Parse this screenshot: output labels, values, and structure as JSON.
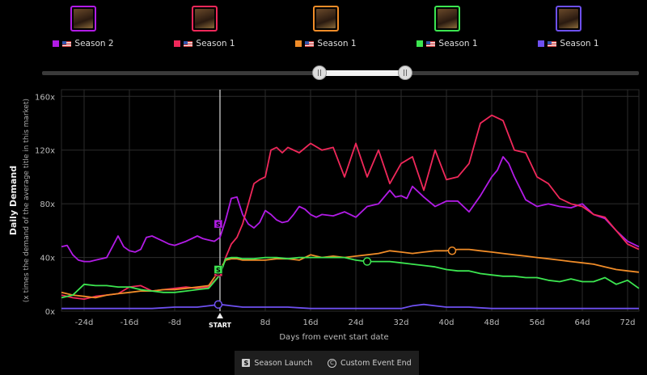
{
  "titles": [
    {
      "label": "Season 2",
      "color": "#b21be6",
      "border": "#b21be6"
    },
    {
      "label": "Season 1",
      "color": "#f0285a",
      "border": "#f0285a"
    },
    {
      "label": "Season 1",
      "color": "#f08c28",
      "border": "#f08c28"
    },
    {
      "label": "Season 1",
      "color": "#3ce650",
      "border": "#3ce650"
    },
    {
      "label": "Season 1",
      "color": "#6e50f0",
      "border": "#6e50f0"
    }
  ],
  "footer": {
    "season_launch": "Season Launch",
    "custom_event_end": "Custom Event End",
    "s_icon": "S",
    "c_icon": "C"
  },
  "chart_data": {
    "type": "line",
    "xlabel": "Days from event start date",
    "ylabel": "Daily Demand",
    "ylabel_sub": "(x times the demand of the average title in this market)",
    "xlim": [
      -28,
      74
    ],
    "ylim": [
      0,
      165
    ],
    "yticks": [
      0,
      40,
      80,
      120,
      160
    ],
    "ytick_labels": [
      "0x",
      "40x",
      "80x",
      "120x",
      "160x"
    ],
    "xticks": [
      -24,
      -16,
      -8,
      8,
      16,
      24,
      32,
      40,
      48,
      56,
      64,
      72
    ],
    "xtick_labels": [
      "-24d",
      "-16d",
      "-8d",
      "8d",
      "16d",
      "24d",
      "32d",
      "40d",
      "48d",
      "56d",
      "64d",
      "72d"
    ],
    "start_label": "START",
    "grid": true,
    "series": [
      {
        "color": "#b21be6",
        "x": [
          -28,
          -27,
          -26,
          -25,
          -24,
          -23,
          -22,
          -20,
          -18,
          -17,
          -16,
          -15,
          -14,
          -13,
          -12,
          -11,
          -10,
          -9,
          -8,
          -6,
          -4,
          -3,
          -2,
          -1,
          0,
          1,
          2,
          3,
          4,
          5,
          6,
          7,
          8,
          9,
          10,
          11,
          12,
          13,
          14,
          15,
          16,
          17,
          18,
          20,
          22,
          24,
          26,
          28,
          30,
          31,
          32,
          33,
          34,
          36,
          38,
          40,
          42,
          44,
          46,
          48,
          49,
          50,
          51,
          52,
          54,
          56,
          58,
          60,
          62,
          64,
          66,
          68,
          70,
          72,
          74
        ],
        "y": [
          48,
          49,
          42,
          38,
          37,
          37,
          38,
          40,
          56,
          48,
          45,
          44,
          46,
          55,
          56,
          54,
          52,
          50,
          49,
          52,
          56,
          54,
          53,
          52,
          55,
          68,
          84,
          85,
          72,
          65,
          62,
          66,
          75,
          72,
          68,
          66,
          67,
          72,
          78,
          76,
          72,
          70,
          72,
          71,
          74,
          70,
          78,
          80,
          90,
          85,
          86,
          84,
          93,
          85,
          78,
          82,
          82,
          74,
          86,
          100,
          105,
          115,
          110,
          100,
          83,
          78,
          80,
          78,
          77,
          80,
          72,
          69,
          60,
          52,
          48
        ]
      },
      {
        "color": "#f0285a",
        "x": [
          -28,
          -26,
          -24,
          -22,
          -20,
          -18,
          -16,
          -14,
          -12,
          -10,
          -8,
          -6,
          -4,
          -2,
          0,
          1,
          2,
          3,
          4,
          5,
          6,
          7,
          8,
          9,
          10,
          11,
          12,
          14,
          16,
          18,
          20,
          22,
          24,
          26,
          28,
          30,
          32,
          34,
          36,
          38,
          40,
          42,
          44,
          46,
          48,
          50,
          52,
          54,
          56,
          58,
          60,
          62,
          64,
          66,
          68,
          70,
          72,
          74
        ],
        "y": [
          12,
          10,
          9,
          11,
          12,
          13,
          18,
          19,
          15,
          16,
          17,
          18,
          17,
          18,
          27,
          40,
          50,
          55,
          65,
          80,
          95,
          98,
          100,
          120,
          122,
          118,
          122,
          118,
          125,
          120,
          122,
          100,
          125,
          100,
          120,
          95,
          110,
          115,
          90,
          120,
          98,
          100,
          110,
          140,
          146,
          142,
          120,
          118,
          100,
          95,
          84,
          80,
          78,
          72,
          70,
          60,
          50,
          46
        ]
      },
      {
        "color": "#f08c28",
        "x": [
          -28,
          -26,
          -24,
          -22,
          -20,
          -18,
          -16,
          -14,
          -12,
          -10,
          -8,
          -6,
          -4,
          -2,
          0,
          1,
          2,
          3,
          4,
          6,
          8,
          10,
          12,
          14,
          16,
          18,
          20,
          22,
          24,
          26,
          28,
          30,
          32,
          34,
          36,
          38,
          40,
          42,
          44,
          46,
          48,
          50,
          52,
          54,
          56,
          58,
          60,
          62,
          64,
          66,
          68,
          70,
          72,
          74
        ],
        "y": [
          14,
          12,
          11,
          10,
          12,
          13,
          14,
          15,
          15,
          16,
          16,
          17,
          18,
          19,
          31,
          38,
          39,
          39,
          38,
          38,
          38,
          39,
          39,
          38,
          42,
          40,
          41,
          40,
          41,
          42,
          43,
          45,
          44,
          43,
          44,
          45,
          45,
          46,
          46,
          45,
          44,
          43,
          42,
          41,
          40,
          39,
          38,
          37,
          36,
          35,
          33,
          31,
          30,
          29
        ]
      },
      {
        "color": "#3ce650",
        "x": [
          -28,
          -26,
          -24,
          -22,
          -20,
          -18,
          -16,
          -14,
          -12,
          -10,
          -8,
          -6,
          -4,
          -2,
          0,
          1,
          2,
          3,
          4,
          6,
          8,
          10,
          12,
          14,
          16,
          18,
          20,
          22,
          24,
          26,
          28,
          30,
          32,
          34,
          36,
          38,
          40,
          42,
          44,
          46,
          48,
          50,
          52,
          54,
          56,
          58,
          60,
          62,
          64,
          66,
          68,
          70,
          72,
          74
        ],
        "y": [
          10,
          12,
          20,
          19,
          19,
          18,
          18,
          16,
          15,
          14,
          14,
          15,
          16,
          17,
          27,
          39,
          40,
          40,
          39,
          39,
          40,
          40,
          39,
          40,
          40,
          40,
          40,
          40,
          38,
          37,
          37,
          37,
          36,
          35,
          34,
          33,
          31,
          30,
          30,
          28,
          27,
          26,
          26,
          25,
          25,
          23,
          22,
          24,
          22,
          22,
          25,
          20,
          23,
          17
        ]
      },
      {
        "color": "#6e50f0",
        "x": [
          -28,
          -24,
          -20,
          -16,
          -12,
          -8,
          -4,
          -2,
          0,
          2,
          4,
          8,
          12,
          16,
          20,
          24,
          28,
          32,
          34,
          36,
          38,
          40,
          44,
          48,
          52,
          56,
          60,
          64,
          68,
          72,
          74
        ],
        "y": [
          2,
          2,
          2,
          2,
          2,
          3,
          3,
          4,
          5,
          4,
          3,
          3,
          3,
          2,
          2,
          2,
          2,
          2,
          4,
          5,
          4,
          3,
          3,
          2,
          2,
          2,
          2,
          2,
          2,
          2,
          2
        ]
      }
    ],
    "markers": [
      {
        "series": 0,
        "type": "S",
        "x": -0.3,
        "y": 65
      },
      {
        "series": 1,
        "type": "S",
        "x": -0.3,
        "y": 29
      },
      {
        "series": 2,
        "type": "S",
        "x": -0.3,
        "y": 31
      },
      {
        "series": 3,
        "type": "S",
        "x": -0.3,
        "y": 31
      },
      {
        "series": 4,
        "type": "C",
        "x": -0.3,
        "y": 5
      },
      {
        "series": 2,
        "type": "C",
        "x": 41,
        "y": 45
      },
      {
        "series": 3,
        "type": "C",
        "x": 26,
        "y": 37
      }
    ]
  }
}
